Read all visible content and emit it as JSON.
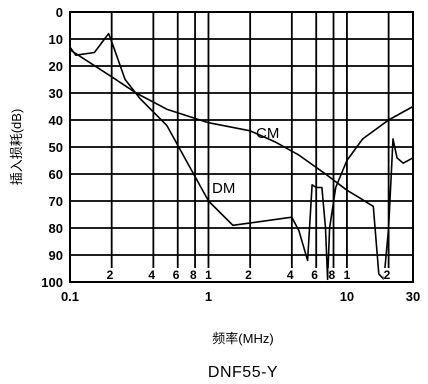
{
  "chart_data": {
    "type": "line",
    "title": "DNF55-Y",
    "xlabel": "频率(MHz)",
    "ylabel": "插入损耗(dB)",
    "xscale": "log",
    "xlim": [
      0.1,
      30
    ],
    "ylim": [
      0,
      100
    ],
    "y_inverted": true,
    "grid": true,
    "x_major_ticks": [
      0.1,
      1,
      10,
      30
    ],
    "x_major_tick_labels": [
      "0.1",
      "1",
      "10",
      "30"
    ],
    "x_minor_ticks": [
      0.2,
      0.4,
      0.6,
      0.8,
      2,
      4,
      6,
      8,
      20
    ],
    "x_minor_tick_labels": [
      "2",
      "4",
      "6",
      "8",
      "2",
      "4",
      "6",
      "8",
      "2"
    ],
    "y_ticks": [
      0,
      10,
      20,
      30,
      40,
      50,
      60,
      70,
      80,
      90,
      100
    ],
    "y_tick_labels": [
      "0",
      "10",
      "20",
      "30",
      "40",
      "50",
      "60",
      "70",
      "80",
      "90",
      "100"
    ],
    "series": [
      {
        "name": "CM",
        "color": "#000000",
        "points": [
          [
            0.1,
            14
          ],
          [
            0.2,
            24
          ],
          [
            0.3,
            30
          ],
          [
            0.5,
            36
          ],
          [
            1.0,
            41
          ],
          [
            2.0,
            44
          ],
          [
            3.0,
            48
          ],
          [
            4.5,
            53
          ],
          [
            7.0,
            60
          ],
          [
            10.0,
            66
          ],
          [
            12.5,
            69
          ],
          [
            15.5,
            72
          ],
          [
            17.0,
            97
          ],
          [
            18.5,
            99
          ],
          [
            20.0,
            80
          ],
          [
            21.5,
            47
          ],
          [
            23.0,
            54
          ],
          [
            25.5,
            56
          ],
          [
            30.0,
            54
          ]
        ]
      },
      {
        "name": "DM",
        "color": "#000000",
        "points": [
          [
            0.1,
            13
          ],
          [
            0.11,
            16
          ],
          [
            0.15,
            15
          ],
          [
            0.19,
            8
          ],
          [
            0.2,
            11
          ],
          [
            0.25,
            25
          ],
          [
            0.32,
            32
          ],
          [
            0.5,
            42
          ],
          [
            1.0,
            70
          ],
          [
            1.5,
            79
          ],
          [
            4.0,
            76
          ],
          [
            4.5,
            81
          ],
          [
            5.2,
            92
          ],
          [
            5.6,
            64
          ],
          [
            6.0,
            65
          ],
          [
            6.6,
            65
          ],
          [
            7.0,
            80
          ],
          [
            7.25,
            99
          ],
          [
            7.5,
            80
          ],
          [
            8.3,
            65
          ],
          [
            10.0,
            55
          ],
          [
            13.0,
            47
          ],
          [
            20.0,
            40
          ],
          [
            30.0,
            35
          ]
        ]
      }
    ]
  }
}
